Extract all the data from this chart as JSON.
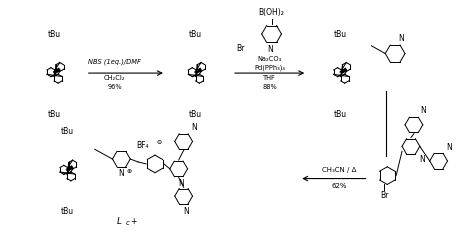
{
  "bg_color": "#ffffff",
  "arrow1_label_top": "NBS (1eq.)/DMF",
  "arrow1_label_mid": "CH₂Cl₂",
  "arrow1_label_bot": "96%",
  "arrow2_label_top": "Na₂CO₃",
  "arrow2_label_mid": "Pd(PPh₃)₄",
  "arrow2_label_mid2": "THF",
  "arrow2_label_bot": "88%",
  "arrow3_label_top": "CH₃CN / Δ",
  "arrow3_label_bot": "62%",
  "boronic_label": "B(OH)₂",
  "N_label": "N",
  "Br_label": "Br",
  "tBu": "tBu",
  "BF4_label": "BF₄",
  "plus_label": "⊕",
  "minus_label": "⊖",
  "Lc_label": "L",
  "Lc_sub": "c",
  "Lc_plus": "+"
}
